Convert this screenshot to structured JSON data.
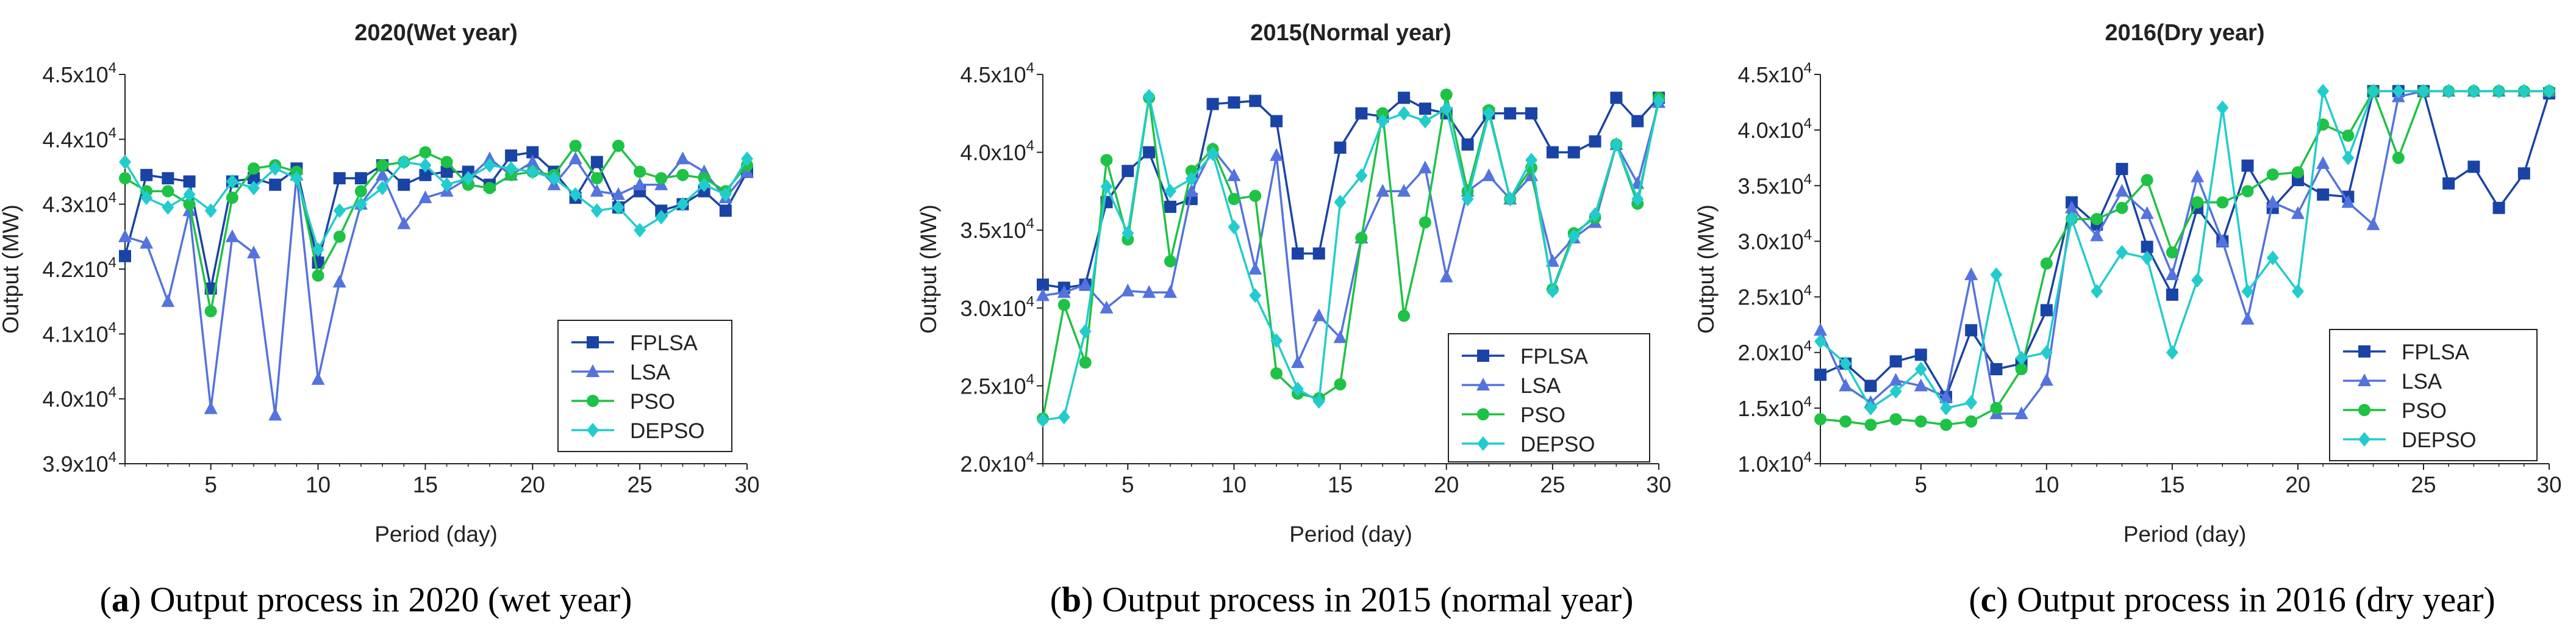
{
  "figure": {
    "captions": [
      {
        "label": "a",
        "text": " Output process in 2020 (wet year)"
      },
      {
        "label": "b",
        "text": " Output process in 2015 (normal year)"
      },
      {
        "label": "c",
        "text": " Output process in 2016 (dry year)"
      }
    ]
  },
  "colors": {
    "FPLSA": "#1a43a6",
    "LSA": "#5473de",
    "PSO": "#1ec245",
    "DEPSO": "#22cccc",
    "axis": "#222222",
    "text": "#222222"
  },
  "chart_data": [
    {
      "type": "line",
      "title": "2020(Wet year)",
      "xlabel": "Period (day)",
      "ylabel": "Output (MW)",
      "xlim": [
        1,
        30
      ],
      "ylim": [
        39000,
        45000
      ],
      "xticks": [
        5,
        10,
        15,
        20,
        25,
        30
      ],
      "yticks": [
        {
          "value": 39000,
          "mantissa": "3.9x10",
          "exp": "4"
        },
        {
          "value": 40000,
          "mantissa": "4.0x10",
          "exp": "4"
        },
        {
          "value": 41000,
          "mantissa": "4.1x10",
          "exp": "4"
        },
        {
          "value": 42000,
          "mantissa": "4.2x10",
          "exp": "4"
        },
        {
          "value": 43000,
          "mantissa": "4.3x10",
          "exp": "4"
        },
        {
          "value": 44000,
          "mantissa": "4.4x10",
          "exp": "4"
        },
        {
          "value": 45000,
          "mantissa": "4.5x10",
          "exp": "4"
        }
      ],
      "legend_position": "bottom-right",
      "x": [
        1,
        2,
        3,
        4,
        5,
        6,
        7,
        8,
        9,
        10,
        11,
        12,
        13,
        14,
        15,
        16,
        17,
        18,
        19,
        20,
        21,
        22,
        23,
        24,
        25,
        26,
        27,
        28,
        29,
        30
      ],
      "series": [
        {
          "name": "FPLSA",
          "marker": "square",
          "values": [
            42200,
            43450,
            43400,
            43350,
            41700,
            43350,
            43400,
            43300,
            43550,
            42100,
            43400,
            43400,
            43600,
            43300,
            43450,
            43500,
            43500,
            43300,
            43750,
            43800,
            43500,
            43100,
            43650,
            42950,
            43200,
            42900,
            43000,
            43200,
            42900,
            43500
          ]
        },
        {
          "name": "LSA",
          "marker": "triangle",
          "values": [
            42500,
            42400,
            41500,
            42900,
            39850,
            42500,
            42250,
            39750,
            43450,
            40300,
            41800,
            43000,
            43450,
            42700,
            43100,
            43200,
            43400,
            43700,
            43450,
            43650,
            43300,
            43700,
            43200,
            43150,
            43300,
            43300,
            43700,
            43500,
            43100,
            43500
          ]
        },
        {
          "name": "PSO",
          "marker": "circle",
          "values": [
            43400,
            43200,
            43200,
            43000,
            41350,
            43100,
            43550,
            43600,
            43500,
            41900,
            42500,
            43200,
            43600,
            43650,
            43800,
            43650,
            43300,
            43250,
            43450,
            43500,
            43450,
            43900,
            43400,
            43900,
            43500,
            43400,
            43450,
            43400,
            43200,
            43600
          ]
        },
        {
          "name": "DEPSO",
          "marker": "diamond",
          "values": [
            43650,
            43100,
            42950,
            43150,
            42900,
            43350,
            43250,
            43550,
            43400,
            42300,
            42900,
            43000,
            43250,
            43650,
            43600,
            43300,
            43400,
            43600,
            43550,
            43500,
            43400,
            43150,
            42900,
            42950,
            42600,
            42800,
            43000,
            43300,
            43150,
            43700
          ]
        }
      ]
    },
    {
      "type": "line",
      "title": "2015(Normal year)",
      "xlabel": "Period (day)",
      "ylabel": "Output (MW)",
      "xlim": [
        1,
        30
      ],
      "ylim": [
        20000,
        45000
      ],
      "xticks": [
        5,
        10,
        15,
        20,
        25,
        30
      ],
      "yticks": [
        {
          "value": 20000,
          "mantissa": "2.0x10",
          "exp": "4"
        },
        {
          "value": 25000,
          "mantissa": "2.5x10",
          "exp": "4"
        },
        {
          "value": 30000,
          "mantissa": "3.0x10",
          "exp": "4"
        },
        {
          "value": 35000,
          "mantissa": "3.5x10",
          "exp": "4"
        },
        {
          "value": 40000,
          "mantissa": "4.0x10",
          "exp": "4"
        },
        {
          "value": 45000,
          "mantissa": "4.5x10",
          "exp": "4"
        }
      ],
      "legend_position": "bottom-right",
      "x": [
        1,
        2,
        3,
        4,
        5,
        6,
        7,
        8,
        9,
        10,
        11,
        12,
        13,
        14,
        15,
        16,
        17,
        18,
        19,
        20,
        21,
        22,
        23,
        24,
        25,
        26,
        27,
        28,
        29,
        30
      ],
      "series": [
        {
          "name": "FPLSA",
          "marker": "square",
          "values": [
            31500,
            31300,
            31500,
            36800,
            38800,
            40000,
            36500,
            37000,
            43100,
            43200,
            43300,
            42000,
            33500,
            33500,
            40300,
            42500,
            42300,
            43500,
            42800,
            42500,
            40500,
            42500,
            42500,
            42500,
            40000,
            40000,
            40700,
            43500,
            42000,
            43500
          ]
        },
        {
          "name": "LSA",
          "marker": "triangle",
          "values": [
            30800,
            31000,
            31500,
            30000,
            31100,
            31000,
            31000,
            37500,
            40200,
            38500,
            32500,
            39800,
            26500,
            29500,
            28100,
            34500,
            37500,
            37500,
            39000,
            32000,
            37500,
            38500,
            37000,
            38500,
            33000,
            34500,
            35500,
            40500,
            38000,
            43200
          ]
        },
        {
          "name": "PSO",
          "marker": "circle",
          "values": [
            22900,
            30200,
            26500,
            39500,
            34400,
            43500,
            33000,
            38800,
            40200,
            37000,
            37200,
            25800,
            24500,
            24200,
            25100,
            34500,
            42500,
            29500,
            35500,
            43700,
            37500,
            42700,
            37000,
            39000,
            31200,
            34800,
            35800,
            40500,
            36700,
            43500
          ]
        },
        {
          "name": "DEPSO",
          "marker": "diamond",
          "values": [
            22800,
            23000,
            28500,
            37800,
            34800,
            43600,
            37500,
            38300,
            39900,
            35200,
            30800,
            27900,
            24800,
            24000,
            36800,
            38500,
            42000,
            42500,
            42000,
            42800,
            37000,
            42500,
            37000,
            39500,
            31100,
            34600,
            36000,
            40500,
            37000,
            43300
          ]
        }
      ]
    },
    {
      "type": "line",
      "title": "2016(Dry year)",
      "xlabel": "Period (day)",
      "ylabel": "Output (MW)",
      "xlim": [
        1,
        30
      ],
      "ylim": [
        10000,
        45000
      ],
      "xticks": [
        5,
        10,
        15,
        20,
        25,
        30
      ],
      "yticks": [
        {
          "value": 10000,
          "mantissa": "1.0x10",
          "exp": "4"
        },
        {
          "value": 15000,
          "mantissa": "1.5x10",
          "exp": "4"
        },
        {
          "value": 20000,
          "mantissa": "2.0x10",
          "exp": "4"
        },
        {
          "value": 25000,
          "mantissa": "2.5x10",
          "exp": "4"
        },
        {
          "value": 30000,
          "mantissa": "3.0x10",
          "exp": "4"
        },
        {
          "value": 35000,
          "mantissa": "3.5x10",
          "exp": "4"
        },
        {
          "value": 40000,
          "mantissa": "4.0x10",
          "exp": "4"
        },
        {
          "value": 45000,
          "mantissa": "4.5x10",
          "exp": "4"
        }
      ],
      "legend_position": "bottom-right",
      "x": [
        1,
        2,
        3,
        4,
        5,
        6,
        7,
        8,
        9,
        10,
        11,
        12,
        13,
        14,
        15,
        16,
        17,
        18,
        19,
        20,
        21,
        22,
        23,
        24,
        25,
        26,
        27,
        28,
        29,
        30
      ],
      "series": [
        {
          "name": "FPLSA",
          "marker": "square",
          "values": [
            18000,
            19000,
            17000,
            19200,
            19800,
            16000,
            22000,
            18500,
            19000,
            23800,
            33500,
            31500,
            36500,
            29500,
            25200,
            33000,
            30000,
            36800,
            33000,
            35500,
            34200,
            34000,
            43500,
            43500,
            43500,
            35200,
            36700,
            33000,
            36100,
            43300
          ]
        },
        {
          "name": "LSA",
          "marker": "triangle",
          "values": [
            22000,
            17000,
            15500,
            17500,
            17000,
            16000,
            27000,
            14500,
            14500,
            17500,
            33000,
            30500,
            34500,
            32500,
            27000,
            35800,
            30000,
            23000,
            33500,
            32500,
            37000,
            33500,
            31500,
            43000,
            43500,
            43500,
            43500,
            43500,
            43500,
            43500
          ]
        },
        {
          "name": "PSO",
          "marker": "circle",
          "values": [
            14000,
            13800,
            13500,
            14000,
            13800,
            13500,
            13800,
            15000,
            18500,
            28000,
            32000,
            32000,
            33000,
            35500,
            29000,
            33500,
            33500,
            34500,
            36000,
            36200,
            40500,
            39500,
            43500,
            37500,
            43500,
            43500,
            43500,
            43500,
            43500,
            43500
          ]
        },
        {
          "name": "DEPSO",
          "marker": "diamond",
          "values": [
            21000,
            19000,
            15000,
            16500,
            18500,
            15000,
            15500,
            27000,
            19500,
            20000,
            32000,
            25500,
            29000,
            28500,
            20000,
            26500,
            42000,
            25500,
            28500,
            25500,
            43500,
            37500,
            43500,
            43500,
            43500,
            43500,
            43500,
            43500,
            43500,
            43500
          ]
        }
      ]
    }
  ]
}
